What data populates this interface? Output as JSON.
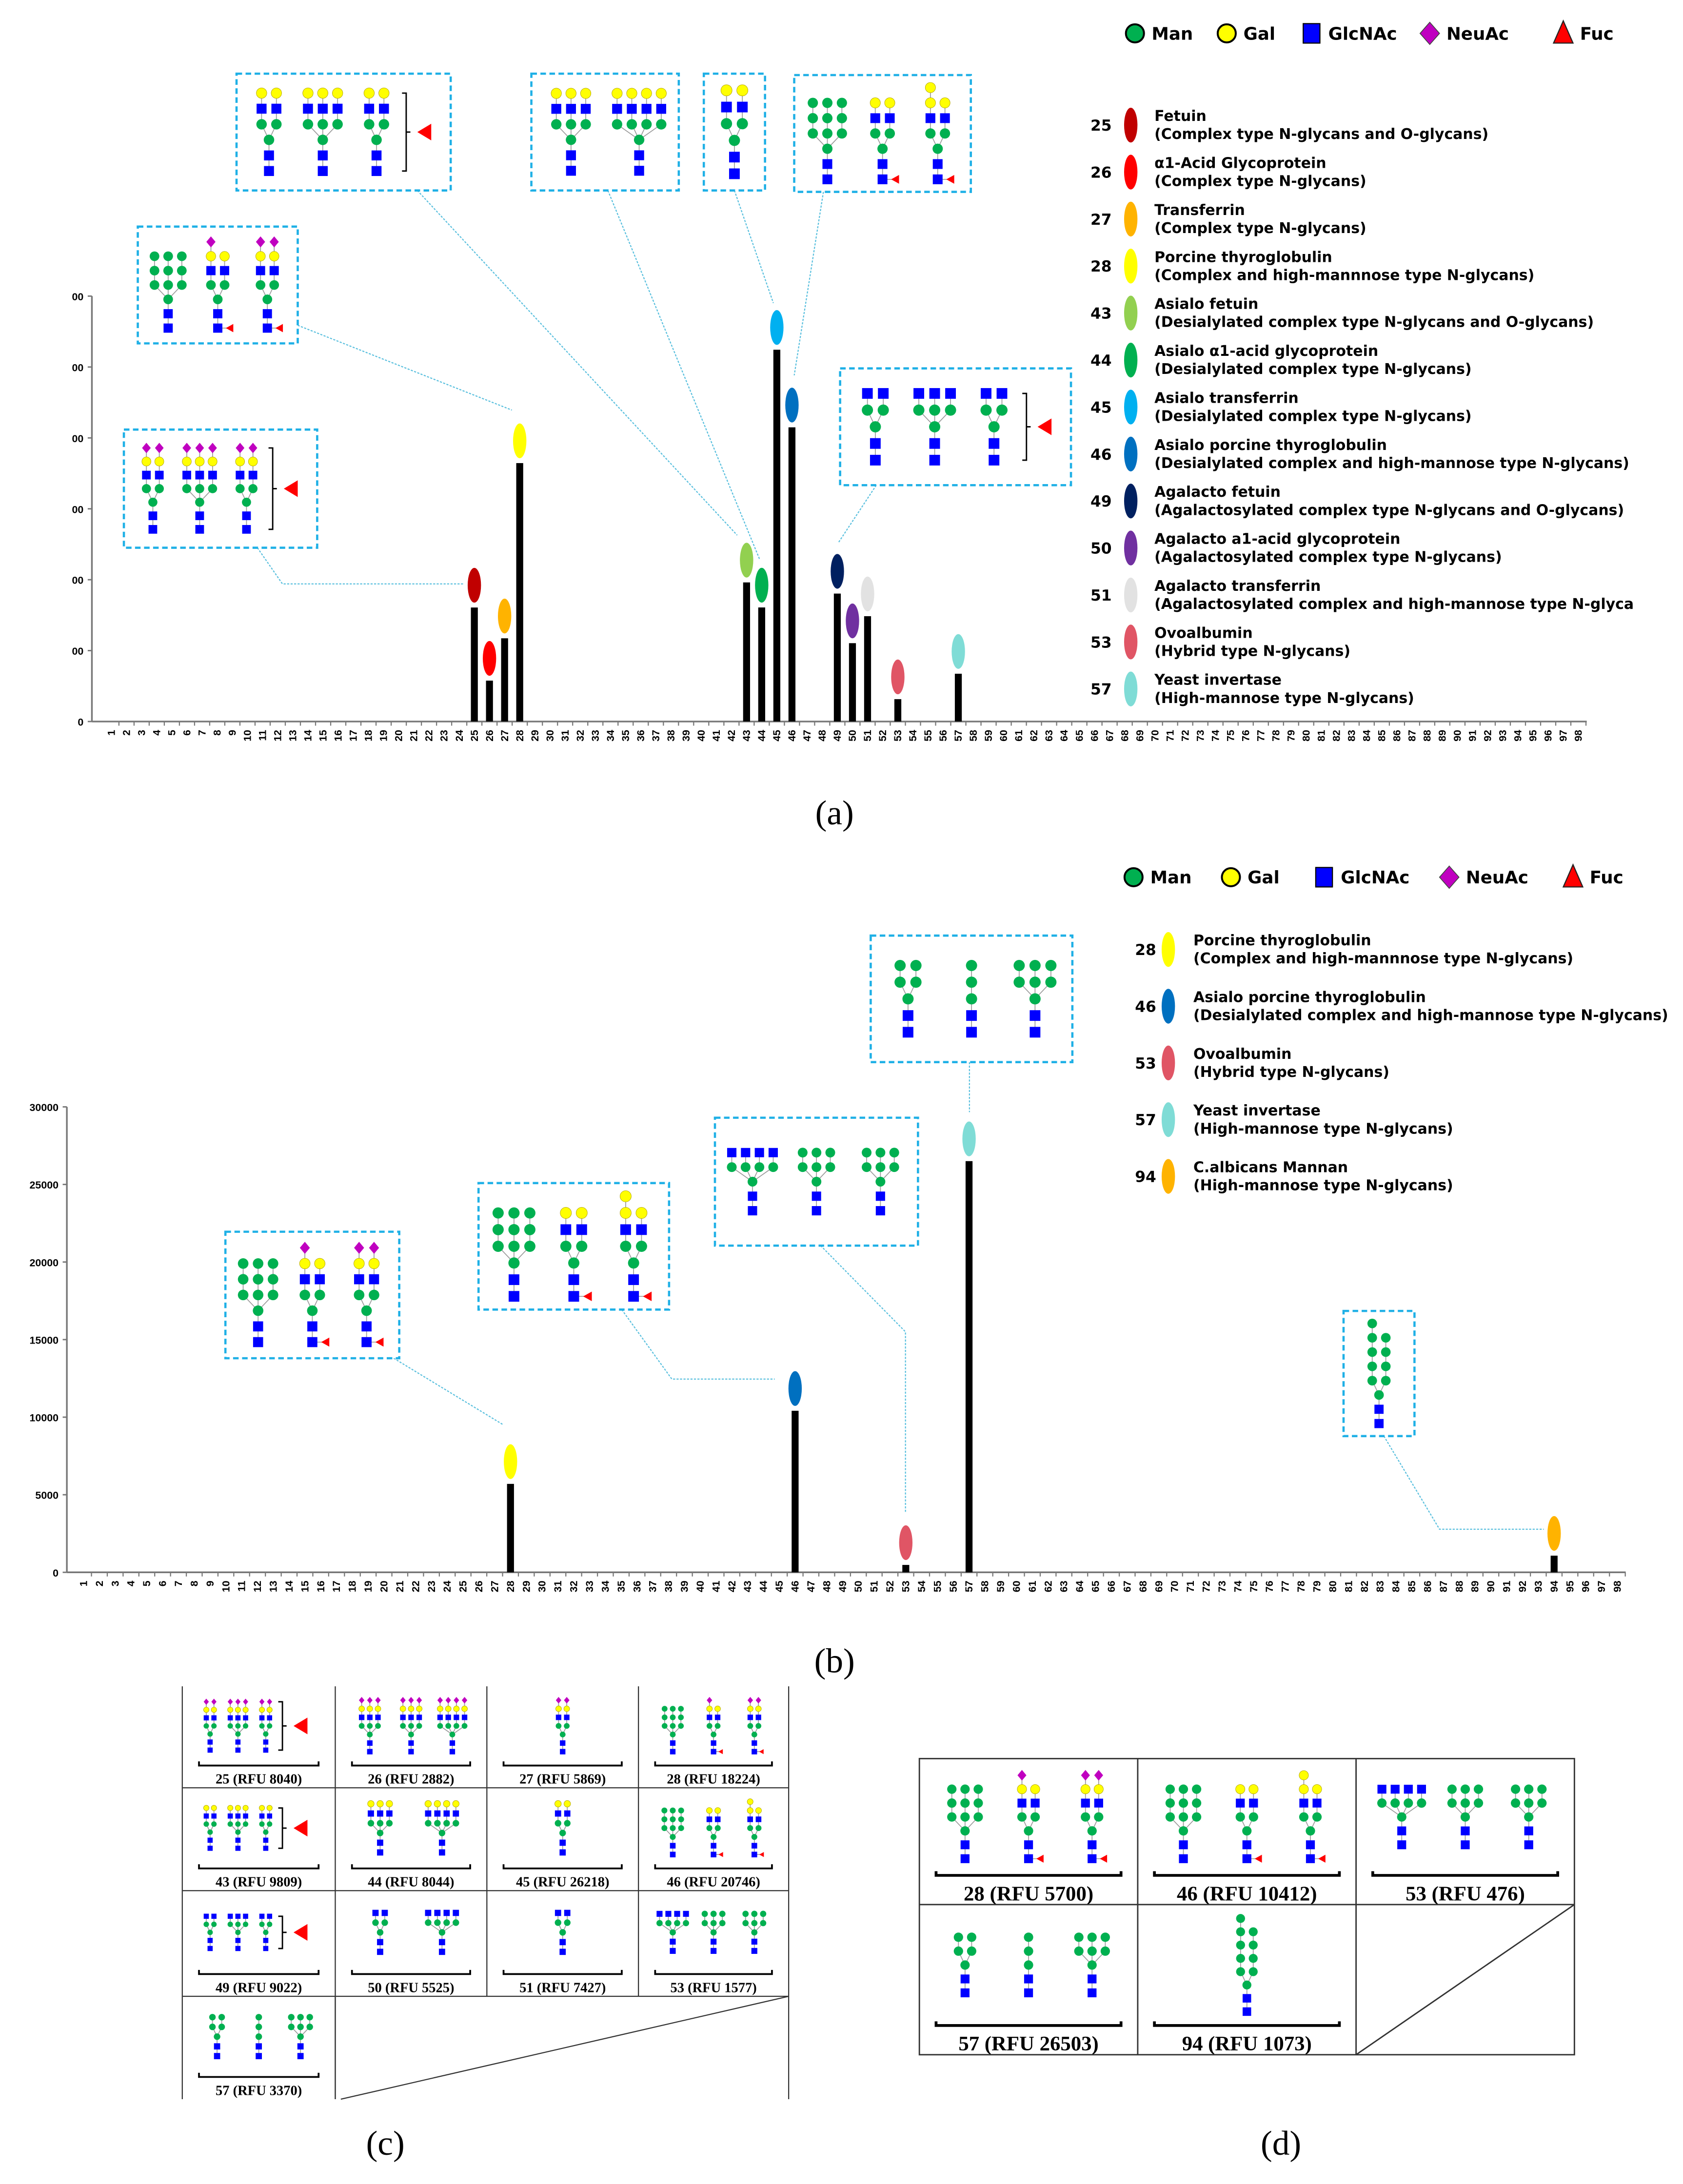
{
  "sugar_legend": [
    {
      "name": "Man",
      "shape": "circle",
      "color": "#00b050"
    },
    {
      "name": "Gal",
      "shape": "circle",
      "color": "#ffff00"
    },
    {
      "name": "GlcNAc",
      "shape": "square",
      "color": "#0000ff"
    },
    {
      "name": "NeuAc",
      "shape": "diamond",
      "color": "#c000c0"
    },
    {
      "name": "Fuc",
      "shape": "triangle",
      "color": "#ff0000"
    }
  ],
  "panel_labels": {
    "a": "(a)",
    "b": "(b)",
    "c": "(c)",
    "d": "(d)"
  },
  "glycan_sets": {
    "fetuin": [
      {
        "a": [
          "GYS",
          "GYS"
        ]
      },
      {
        "a": [
          "GYS",
          "GYS",
          "GYS"
        ]
      },
      {
        "a": [
          "GYS",
          "GYS"
        ]
      }
    ],
    "aagp": [
      {
        "a": [
          "GYS",
          "GYS",
          "GYS"
        ]
      },
      {
        "a": [
          "GYS",
          "GYS",
          "GYS"
        ]
      },
      {
        "a": [
          "GYS",
          "GYS",
          "GYS",
          "GYS"
        ]
      }
    ],
    "transferrin": [
      {
        "a": [
          "GYS",
          "GYS"
        ]
      }
    ],
    "thyro": [
      {
        "a": [
          "MM",
          "MM",
          "MM"
        ]
      },
      {
        "a": [
          "GYS",
          "GY"
        ],
        "f": true
      },
      {
        "a": [
          "GYS",
          "GYS"
        ],
        "f": true
      }
    ],
    "asialo_fetuin": [
      {
        "a": [
          "GY",
          "GY"
        ]
      },
      {
        "a": [
          "GY",
          "GY",
          "GY"
        ]
      },
      {
        "a": [
          "GY",
          "GY"
        ]
      }
    ],
    "asialo_aagp": [
      {
        "a": [
          "GY",
          "GY",
          "GY"
        ]
      },
      {
        "a": [
          "GY",
          "GY",
          "GY",
          "GY"
        ]
      }
    ],
    "asialo_transferrin": [
      {
        "a": [
          "GY",
          "GY"
        ]
      }
    ],
    "asialo_thyro": [
      {
        "a": [
          "MM",
          "MM",
          "MM"
        ]
      },
      {
        "a": [
          "GY",
          "GY"
        ],
        "f": true
      },
      {
        "a": [
          "GYY",
          "GY"
        ],
        "f": true
      }
    ],
    "agalacto_fetuin": [
      {
        "a": [
          "G",
          "G"
        ]
      },
      {
        "a": [
          "G",
          "G",
          "G"
        ]
      },
      {
        "a": [
          "G",
          "G"
        ]
      }
    ],
    "agalacto_aagp": [
      {
        "a": [
          "G",
          "G"
        ]
      },
      {
        "a": [
          "G",
          "G",
          "G",
          "G"
        ]
      }
    ],
    "agalacto_transferrin": [
      {
        "a": [
          "G",
          "G"
        ]
      }
    ],
    "ovalbumin": [
      {
        "a": [
          "G",
          "G",
          "G",
          "G"
        ]
      },
      {
        "a": [
          "M",
          "M",
          "M"
        ]
      },
      {
        "a": [
          "M",
          "M",
          "M"
        ]
      }
    ],
    "invertase": [
      {
        "a": [
          "M",
          "M"
        ]
      },
      {
        "a": [
          "M"
        ]
      },
      {
        "a": [
          "M",
          "M",
          "M"
        ]
      }
    ],
    "mannan": [
      {
        "a": [
          "MMMM",
          "MMM"
        ]
      }
    ]
  },
  "chart_data": [
    {
      "type": "bar",
      "panel": "a",
      "x_ticks": [
        1,
        2,
        3,
        4,
        5,
        6,
        7,
        8,
        9,
        10,
        11,
        12,
        13,
        14,
        15,
        16,
        17,
        18,
        19,
        20,
        21,
        22,
        23,
        24,
        25,
        26,
        27,
        28,
        29,
        30,
        31,
        32,
        33,
        34,
        35,
        36,
        37,
        38,
        39,
        40,
        41,
        42,
        43,
        44,
        45,
        46,
        47,
        48,
        49,
        50,
        51,
        52,
        53,
        54,
        55,
        56,
        57,
        58,
        59,
        60,
        61,
        62,
        63,
        64,
        65,
        66,
        67,
        68,
        69,
        70,
        71,
        72,
        73,
        74,
        75,
        76,
        77,
        78,
        79,
        80,
        81,
        82,
        83,
        84,
        85,
        86,
        87,
        88,
        89,
        90,
        91,
        92,
        93,
        94,
        95,
        96,
        97,
        98
      ],
      "ylim": [
        0,
        30000
      ],
      "ytick_values": [
        0,
        5000,
        10000,
        15000,
        20000,
        25000,
        30000
      ],
      "ytick_labels": [
        "0",
        "00",
        "00",
        "00",
        "00",
        "00",
        "00"
      ],
      "categories": [
        25,
        26,
        27,
        28,
        43,
        44,
        45,
        46,
        49,
        50,
        51,
        53,
        57
      ],
      "values": [
        8040,
        2882,
        5869,
        18224,
        9809,
        8044,
        26218,
        20746,
        9022,
        5525,
        7427,
        1577,
        3370
      ],
      "marker_colors": [
        "#c00000",
        "#ff0000",
        "#ffb300",
        "#ffff00",
        "#92d050",
        "#00b050",
        "#00b0f0",
        "#0070c0",
        "#002060",
        "#7030a0",
        "#e2e2e2",
        "#e05565",
        "#7fdcd6"
      ],
      "legend": [
        {
          "num": "25",
          "name": "Fetuin",
          "desc": "(Complex type N-glycans and O-glycans)"
        },
        {
          "num": "26",
          "name": "α1-Acid Glycoprotein",
          "desc": "(Complex type N-glycans)"
        },
        {
          "num": "27",
          "name": "Transferrin",
          "desc": "(Complex type N-glycans)"
        },
        {
          "num": "28",
          "name": "Porcine thyroglobulin",
          "desc": "(Complex and high-mannnose type N-glycans)"
        },
        {
          "num": "43",
          "name": "Asialo fetuin",
          "desc": "(Desialylated complex type N-glycans and O-glycans)"
        },
        {
          "num": "44",
          "name": "Asialo α1-acid glycoprotein",
          "desc": "(Desialylated complex type N-glycans)"
        },
        {
          "num": "45",
          "name": "Asialo transferrin",
          "desc": "(Desialylated complex type N-glycans)"
        },
        {
          "num": "46",
          "name": "Asialo porcine thyroglobulin",
          "desc": "(Desialylated complex and high-mannose type N-glycans)"
        },
        {
          "num": "49",
          "name": "Agalacto fetuin",
          "desc": "(Agalactosylated complex type N-glycans and O-glycans)"
        },
        {
          "num": "50",
          "name": "Agalacto a1-acid glycoprotein",
          "desc": "(Agalactosylated complex type N-glycans)"
        },
        {
          "num": "51",
          "name": "Agalacto transferrin",
          "desc": "(Agalactosylated complex and high-mannose type N-glyca"
        },
        {
          "num": "53",
          "name": "Ovoalbumin",
          "desc": "(Hybrid type N-glycans)"
        },
        {
          "num": "57",
          "name": "Yeast invertase",
          "desc": "(High-mannose type N-glycans)"
        }
      ],
      "insets": [
        {
          "target": 25,
          "set": "fetuin",
          "bracket_fuc": true
        },
        {
          "target": 28,
          "set": "thyro"
        },
        {
          "target": 43,
          "set": "asialo_fetuin",
          "bracket_fuc": true
        },
        {
          "target": 44,
          "set": "asialo_aagp"
        },
        {
          "target": 45,
          "set": "asialo_transferrin"
        },
        {
          "target": 46,
          "set": "asialo_thyro"
        },
        {
          "target": 49,
          "set": "agalacto_fetuin",
          "bracket_fuc": true
        }
      ]
    },
    {
      "type": "bar",
      "panel": "b",
      "x_ticks": [
        1,
        2,
        3,
        4,
        5,
        6,
        7,
        8,
        9,
        10,
        11,
        12,
        13,
        14,
        15,
        16,
        17,
        18,
        19,
        20,
        21,
        22,
        23,
        24,
        25,
        26,
        27,
        28,
        29,
        30,
        31,
        32,
        33,
        34,
        35,
        36,
        37,
        38,
        39,
        40,
        41,
        42,
        43,
        44,
        45,
        46,
        47,
        48,
        49,
        50,
        51,
        52,
        53,
        54,
        55,
        56,
        57,
        58,
        59,
        60,
        61,
        62,
        63,
        64,
        65,
        66,
        67,
        68,
        69,
        70,
        71,
        72,
        73,
        74,
        75,
        76,
        77,
        78,
        79,
        80,
        81,
        82,
        83,
        84,
        85,
        86,
        87,
        88,
        89,
        90,
        91,
        92,
        93,
        94,
        95,
        96,
        97,
        98
      ],
      "ylim": [
        0,
        30000
      ],
      "ytick_values": [
        0,
        5000,
        10000,
        15000,
        20000,
        25000,
        30000
      ],
      "ytick_labels": [
        "0",
        "5000",
        "10000",
        "15000",
        "20000",
        "25000",
        "30000"
      ],
      "categories": [
        28,
        46,
        53,
        57,
        94
      ],
      "values": [
        5700,
        10412,
        476,
        26503,
        1073
      ],
      "marker_colors": [
        "#ffff00",
        "#0070c0",
        "#e05565",
        "#7fdcd6",
        "#ffb300"
      ],
      "legend": [
        {
          "num": "28",
          "name": "Porcine thyroglobulin",
          "desc": "(Complex and high-mannnose type N-glycans)"
        },
        {
          "num": "46",
          "name": "Asialo porcine thyroglobulin",
          "desc": "(Desialylated complex and high-mannose type N-glycans)"
        },
        {
          "num": "53",
          "name": "Ovoalbumin",
          "desc": "(Hybrid type N-glycans)"
        },
        {
          "num": "57",
          "name": "Yeast invertase",
          "desc": "(High-mannose type N-glycans)"
        },
        {
          "num": "94",
          "name": "C.albicans Mannan",
          "desc": "(High-mannose type N-glycans)"
        }
      ],
      "insets": [
        {
          "target": 28,
          "set": "thyro"
        },
        {
          "target": 46,
          "set": "asialo_thyro"
        },
        {
          "target": 53,
          "set": "ovalbumin"
        },
        {
          "target": 57,
          "set": "invertase"
        },
        {
          "target": 94,
          "set": "mannan"
        }
      ]
    },
    {
      "type": "table",
      "panel": "c",
      "cells": [
        {
          "label": "25 (RFU 8040)",
          "set": "fetuin",
          "bracket_fuc": true
        },
        {
          "label": "26 (RFU 2882)",
          "set": "aagp"
        },
        {
          "label": "27 (RFU 5869)",
          "set": "transferrin"
        },
        {
          "label": "28  (RFU 18224)",
          "set": "thyro"
        },
        {
          "label": "43 (RFU 9809)",
          "set": "asialo_fetuin",
          "bracket_fuc": true
        },
        {
          "label": "44 (RFU 8044)",
          "set": "asialo_aagp"
        },
        {
          "label": "45 (RFU 26218)",
          "set": "asialo_transferrin"
        },
        {
          "label": "46 (RFU 20746)",
          "set": "asialo_thyro"
        },
        {
          "label": "49 (RFU 9022)",
          "set": "agalacto_fetuin",
          "bracket_fuc": true
        },
        {
          "label": "50 (RFU 5525)",
          "set": "agalacto_aagp"
        },
        {
          "label": "51 (RFU 7427)",
          "set": "agalacto_transferrin"
        },
        {
          "label": "53 (RFU 1577)",
          "set": "ovalbumin"
        },
        {
          "label": "57 (RFU 3370)",
          "set": "invertase"
        }
      ]
    },
    {
      "type": "table",
      "panel": "d",
      "cells": [
        {
          "label": "28  (RFU 5700)",
          "set": "thyro"
        },
        {
          "label": "46 (RFU 10412)",
          "set": "asialo_thyro"
        },
        {
          "label": "53 (RFU 476)",
          "set": "ovalbumin"
        },
        {
          "label": "57 (RFU 26503)",
          "set": "invertase"
        },
        {
          "label": "94  (RFU 1073)",
          "set": "mannan"
        }
      ]
    }
  ]
}
